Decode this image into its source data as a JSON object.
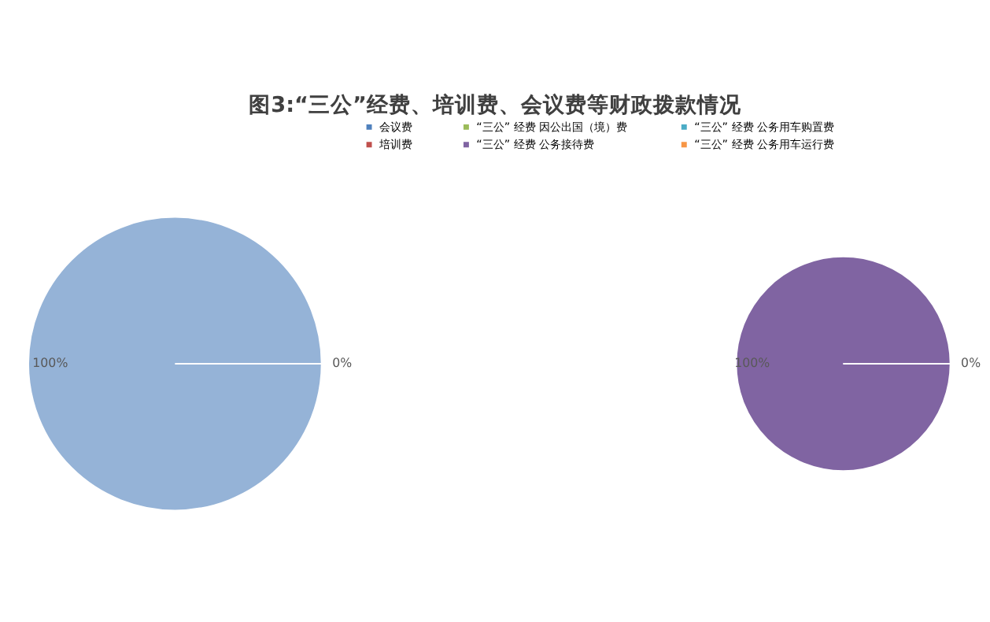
{
  "chart_data": [
    {
      "type": "pie",
      "title": "图3:“三公”经费、培训费、会议费等财政拨款情况",
      "categories": [
        null,
        null
      ],
      "values": [
        100,
        0
      ],
      "colors": [
        "#95b3d7",
        "#95b3d7"
      ],
      "value_labels": [
        "100%",
        "0%"
      ]
    },
    {
      "type": "pie",
      "categories": [
        "会议费",
        "培训费",
        "“三公” 经费 因公出国（境）费",
        "“三公” 经费 公务接待费",
        "“三公” 经费 公务用车购置费",
        "“三公” 经费 公务用车运行费"
      ],
      "values": [
        0,
        0,
        0,
        100,
        0,
        0
      ],
      "colors": [
        "#4f81bd",
        "#c0504d",
        "#9bbb59",
        "#8064a2",
        "#4bacc6",
        "#f79646"
      ],
      "value_labels": [
        null,
        null,
        null,
        "100%",
        "0%",
        null
      ],
      "legend": "top"
    }
  ]
}
